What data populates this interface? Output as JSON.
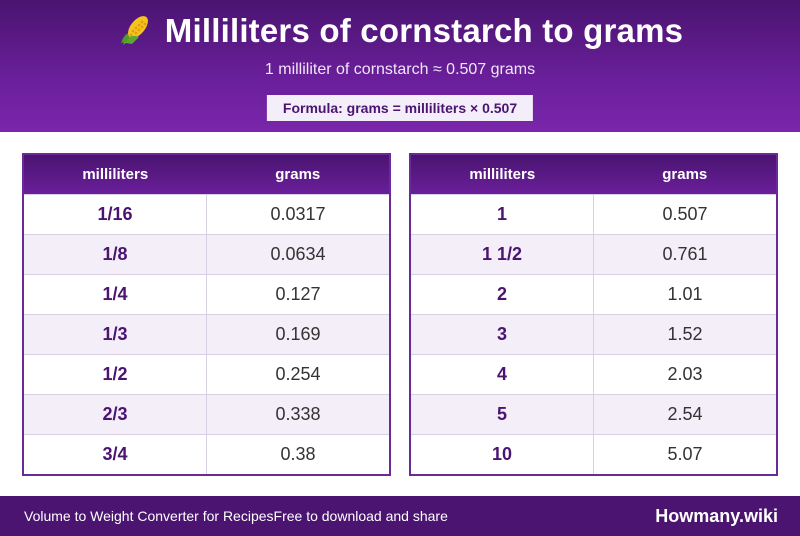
{
  "header": {
    "title": "Milliliters of cornstarch to grams",
    "icon": "corn-icon",
    "subtitle": "1 milliliter of cornstarch ≈ 0.507 grams",
    "formula": "Formula: grams = milliliters × 0.507"
  },
  "tables": [
    {
      "headers": [
        "milliliters",
        "grams"
      ],
      "rows": [
        {
          "ml": "1/16",
          "g": "0.0317"
        },
        {
          "ml": "1/8",
          "g": "0.0634"
        },
        {
          "ml": "1/4",
          "g": "0.127"
        },
        {
          "ml": "1/3",
          "g": "0.169"
        },
        {
          "ml": "1/2",
          "g": "0.254"
        },
        {
          "ml": "2/3",
          "g": "0.338"
        },
        {
          "ml": "3/4",
          "g": "0.38"
        }
      ]
    },
    {
      "headers": [
        "milliliters",
        "grams"
      ],
      "rows": [
        {
          "ml": "1",
          "g": "0.507"
        },
        {
          "ml": "1 1/2",
          "g": "0.761"
        },
        {
          "ml": "2",
          "g": "1.01"
        },
        {
          "ml": "3",
          "g": "1.52"
        },
        {
          "ml": "4",
          "g": "2.03"
        },
        {
          "ml": "5",
          "g": "2.54"
        },
        {
          "ml": "10",
          "g": "5.07"
        }
      ]
    }
  ],
  "footer": {
    "left_text": "Volume to Weight Converter for Recipes",
    "middle_text": "Free to download and share",
    "brand": "Howmany.wiki"
  },
  "colors": {
    "primary": "#6a1f9a",
    "dark": "#4a1470",
    "row_alt": "#f3eef8"
  }
}
